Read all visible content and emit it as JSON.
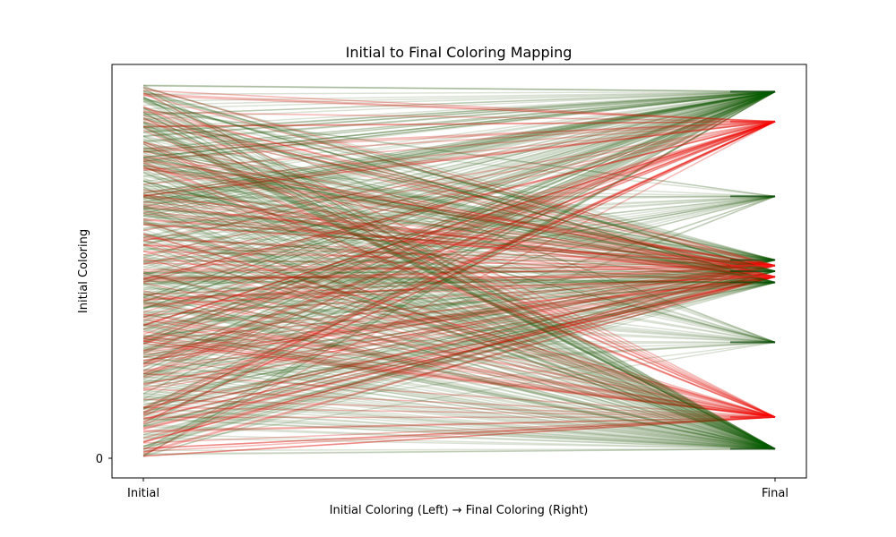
{
  "chart_data": {
    "type": "line",
    "title": "Initial to Final Coloring Mapping",
    "xlabel": "Initial Coloring (Left) → Final Coloring (Right)",
    "ylabel": "Initial Coloring",
    "x_categories": [
      "Initial",
      "Final"
    ],
    "y_tick_labels": [
      "0"
    ],
    "grid": false,
    "legend": "none",
    "colors": {
      "green": "#006400",
      "red": "#ff0000",
      "tan": "#8b7d5a",
      "axis": "#000000"
    },
    "final_levels": [
      {
        "level": 0.98,
        "color": "green",
        "count": 140
      },
      {
        "level": 0.9,
        "color": "red",
        "count": 45
      },
      {
        "level": 0.7,
        "color": "green",
        "count": 30
      },
      {
        "level": 0.53,
        "color": "green",
        "count": 55
      },
      {
        "level": 0.515,
        "color": "red",
        "count": 40
      },
      {
        "level": 0.5,
        "color": "green",
        "count": 50
      },
      {
        "level": 0.485,
        "color": "red",
        "count": 40
      },
      {
        "level": 0.47,
        "color": "green",
        "count": 55
      },
      {
        "level": 0.31,
        "color": "green",
        "count": 30
      },
      {
        "level": 0.11,
        "color": "red",
        "count": 45
      },
      {
        "level": 0.025,
        "color": "green",
        "count": 140
      }
    ]
  }
}
